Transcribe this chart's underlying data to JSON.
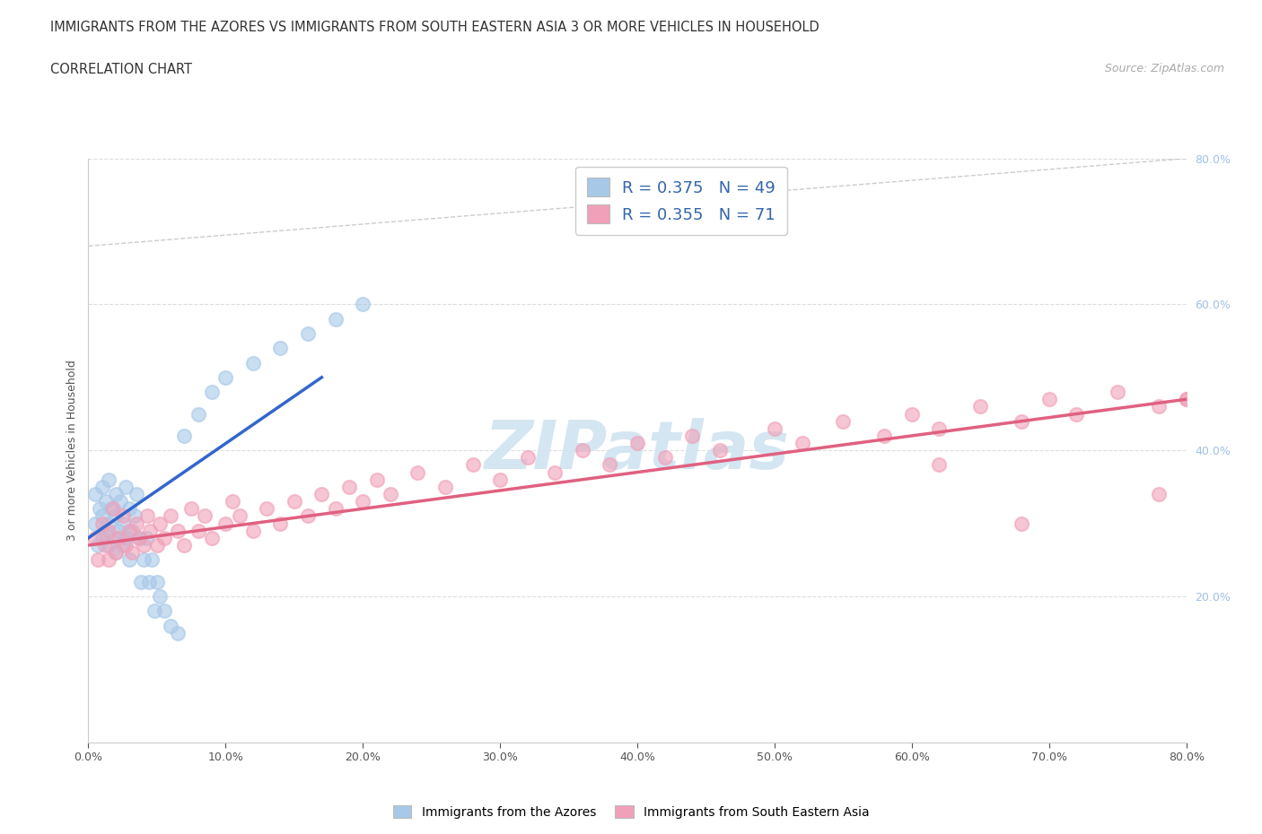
{
  "title_line1": "IMMIGRANTS FROM THE AZORES VS IMMIGRANTS FROM SOUTH EASTERN ASIA 3 OR MORE VEHICLES IN HOUSEHOLD",
  "title_line2": "CORRELATION CHART",
  "source_text": "Source: ZipAtlas.com",
  "ylabel": "3 or more Vehicles in Household",
  "legend1_label": "Immigrants from the Azores",
  "legend2_label": "Immigrants from South Eastern Asia",
  "r1": 0.375,
  "n1": 49,
  "r2": 0.355,
  "n2": 71,
  "xmin": 0.0,
  "xmax": 0.8,
  "ymin": 0.0,
  "ymax": 0.8,
  "color_blue": "#A8C8E8",
  "color_pink": "#F0A0B8",
  "color_trendline_blue": "#3366CC",
  "color_trendline_pink": "#E06080",
  "color_dashed": "#C0C0C0",
  "color_grid": "#DDDDDD",
  "color_right_tick": "#A0C0E8",
  "watermark_color": "#D0E4F0",
  "watermark_text": "ZIPatlas",
  "legend_text_color": "#3366AA",
  "azores_x": [
    0.005,
    0.005,
    0.007,
    0.008,
    0.01,
    0.01,
    0.01,
    0.012,
    0.013,
    0.015,
    0.015,
    0.015,
    0.017,
    0.02,
    0.02,
    0.02,
    0.02,
    0.022,
    0.023,
    0.025,
    0.025,
    0.027,
    0.028,
    0.03,
    0.03,
    0.032,
    0.034,
    0.035,
    0.037,
    0.038,
    0.04,
    0.042,
    0.044,
    0.046,
    0.048,
    0.05,
    0.052,
    0.055,
    0.06,
    0.065,
    0.07,
    0.08,
    0.09,
    0.1,
    0.12,
    0.14,
    0.16,
    0.18,
    0.2
  ],
  "azores_y": [
    0.3,
    0.34,
    0.27,
    0.32,
    0.28,
    0.31,
    0.35,
    0.29,
    0.33,
    0.27,
    0.3,
    0.36,
    0.32,
    0.28,
    0.31,
    0.34,
    0.26,
    0.29,
    0.33,
    0.27,
    0.3,
    0.35,
    0.28,
    0.32,
    0.25,
    0.29,
    0.31,
    0.34,
    0.28,
    0.22,
    0.25,
    0.28,
    0.22,
    0.25,
    0.18,
    0.22,
    0.2,
    0.18,
    0.16,
    0.15,
    0.42,
    0.45,
    0.48,
    0.5,
    0.52,
    0.54,
    0.56,
    0.58,
    0.6
  ],
  "sea_x": [
    0.005,
    0.007,
    0.01,
    0.012,
    0.015,
    0.015,
    0.018,
    0.02,
    0.022,
    0.025,
    0.027,
    0.03,
    0.032,
    0.035,
    0.037,
    0.04,
    0.043,
    0.045,
    0.05,
    0.052,
    0.055,
    0.06,
    0.065,
    0.07,
    0.075,
    0.08,
    0.085,
    0.09,
    0.1,
    0.105,
    0.11,
    0.12,
    0.13,
    0.14,
    0.15,
    0.16,
    0.17,
    0.18,
    0.19,
    0.2,
    0.21,
    0.22,
    0.24,
    0.26,
    0.28,
    0.3,
    0.32,
    0.34,
    0.36,
    0.38,
    0.4,
    0.42,
    0.44,
    0.46,
    0.5,
    0.52,
    0.55,
    0.58,
    0.6,
    0.62,
    0.65,
    0.68,
    0.7,
    0.72,
    0.75,
    0.78,
    0.62,
    0.68,
    0.78,
    0.8,
    0.8
  ],
  "sea_y": [
    0.28,
    0.25,
    0.3,
    0.27,
    0.25,
    0.29,
    0.32,
    0.26,
    0.28,
    0.31,
    0.27,
    0.29,
    0.26,
    0.3,
    0.28,
    0.27,
    0.31,
    0.29,
    0.27,
    0.3,
    0.28,
    0.31,
    0.29,
    0.27,
    0.32,
    0.29,
    0.31,
    0.28,
    0.3,
    0.33,
    0.31,
    0.29,
    0.32,
    0.3,
    0.33,
    0.31,
    0.34,
    0.32,
    0.35,
    0.33,
    0.36,
    0.34,
    0.37,
    0.35,
    0.38,
    0.36,
    0.39,
    0.37,
    0.4,
    0.38,
    0.41,
    0.39,
    0.42,
    0.4,
    0.43,
    0.41,
    0.44,
    0.42,
    0.45,
    0.43,
    0.46,
    0.44,
    0.47,
    0.45,
    0.48,
    0.46,
    0.38,
    0.3,
    0.34,
    0.47,
    0.47
  ]
}
